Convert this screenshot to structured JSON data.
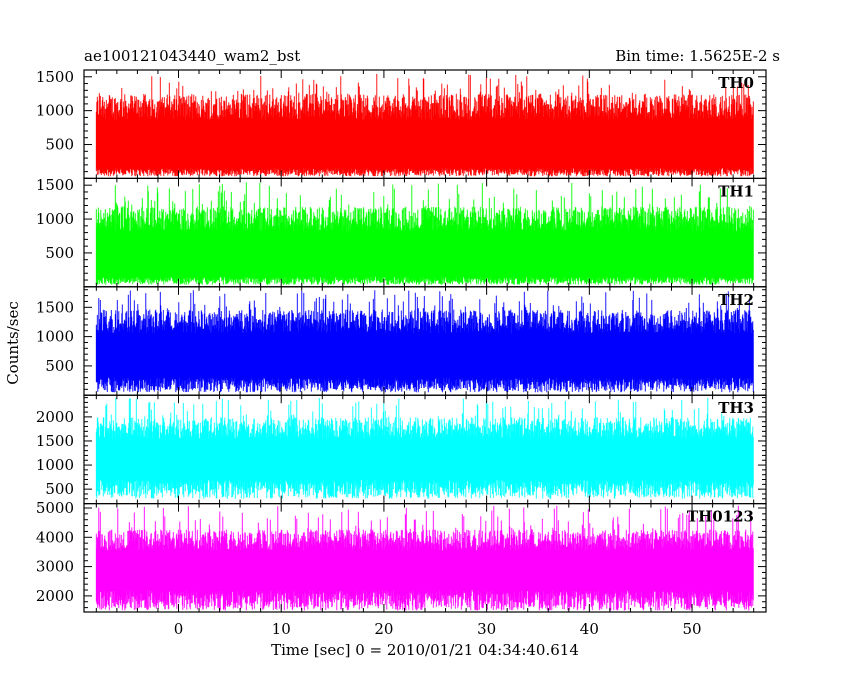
{
  "chart_data": {
    "type": "line",
    "title_left": "ae100121043440_wam2_bst",
    "title_right": "Bin time: 1.5625E-2 s",
    "xlabel": "Time [sec] 0 = 2010/01/21 04:34:40.614",
    "ylabel": "Counts/sec",
    "xlim": [
      -9.2,
      57.2
    ],
    "data_xrange": [
      -8.0,
      56.0
    ],
    "bin_time": 0.015625,
    "xticks_major": [
      0,
      10,
      20,
      30,
      40,
      50
    ],
    "xtick_labels": [
      "0",
      "10",
      "20",
      "30",
      "40",
      "50"
    ],
    "panels": [
      {
        "name": "TH0",
        "color": "#ff0000",
        "ylim": [
          0,
          1600
        ],
        "yticks": [
          500,
          1000,
          1500
        ],
        "ytick_labels": [
          "500",
          "1000",
          "1500"
        ],
        "band_low": 150,
        "band_high": 1000,
        "min": 30,
        "peak": 1550
      },
      {
        "name": "TH1",
        "color": "#00ff00",
        "ylim": [
          0,
          1600
        ],
        "yticks": [
          500,
          1000,
          1500
        ],
        "ytick_labels": [
          "500",
          "1000",
          "1500"
        ],
        "band_low": 150,
        "band_high": 950,
        "min": 30,
        "peak": 1550
      },
      {
        "name": "TH2",
        "color": "#0000ff",
        "ylim": [
          0,
          1850
        ],
        "yticks": [
          500,
          1000,
          1500
        ],
        "ytick_labels": [
          "500",
          "1000",
          "1500"
        ],
        "band_low": 300,
        "band_high": 1200,
        "min": 50,
        "peak": 1800
      },
      {
        "name": "TH3",
        "color": "#00ffff",
        "ylim": [
          200,
          2450
        ],
        "yticks": [
          500,
          1000,
          1500,
          2000
        ],
        "ytick_labels": [
          "500",
          "1000",
          "1500",
          "2000"
        ],
        "band_low": 700,
        "band_high": 1700,
        "min": 300,
        "peak": 2400
      },
      {
        "name": "TH0123",
        "color": "#ff00ff",
        "ylim": [
          1450,
          5150
        ],
        "yticks": [
          2000,
          3000,
          4000,
          5000
        ],
        "ytick_labels": [
          "2000",
          "3000",
          "4000",
          "5000"
        ],
        "band_low": 2200,
        "band_high": 3800,
        "min": 1500,
        "peak": 5100
      }
    ]
  }
}
